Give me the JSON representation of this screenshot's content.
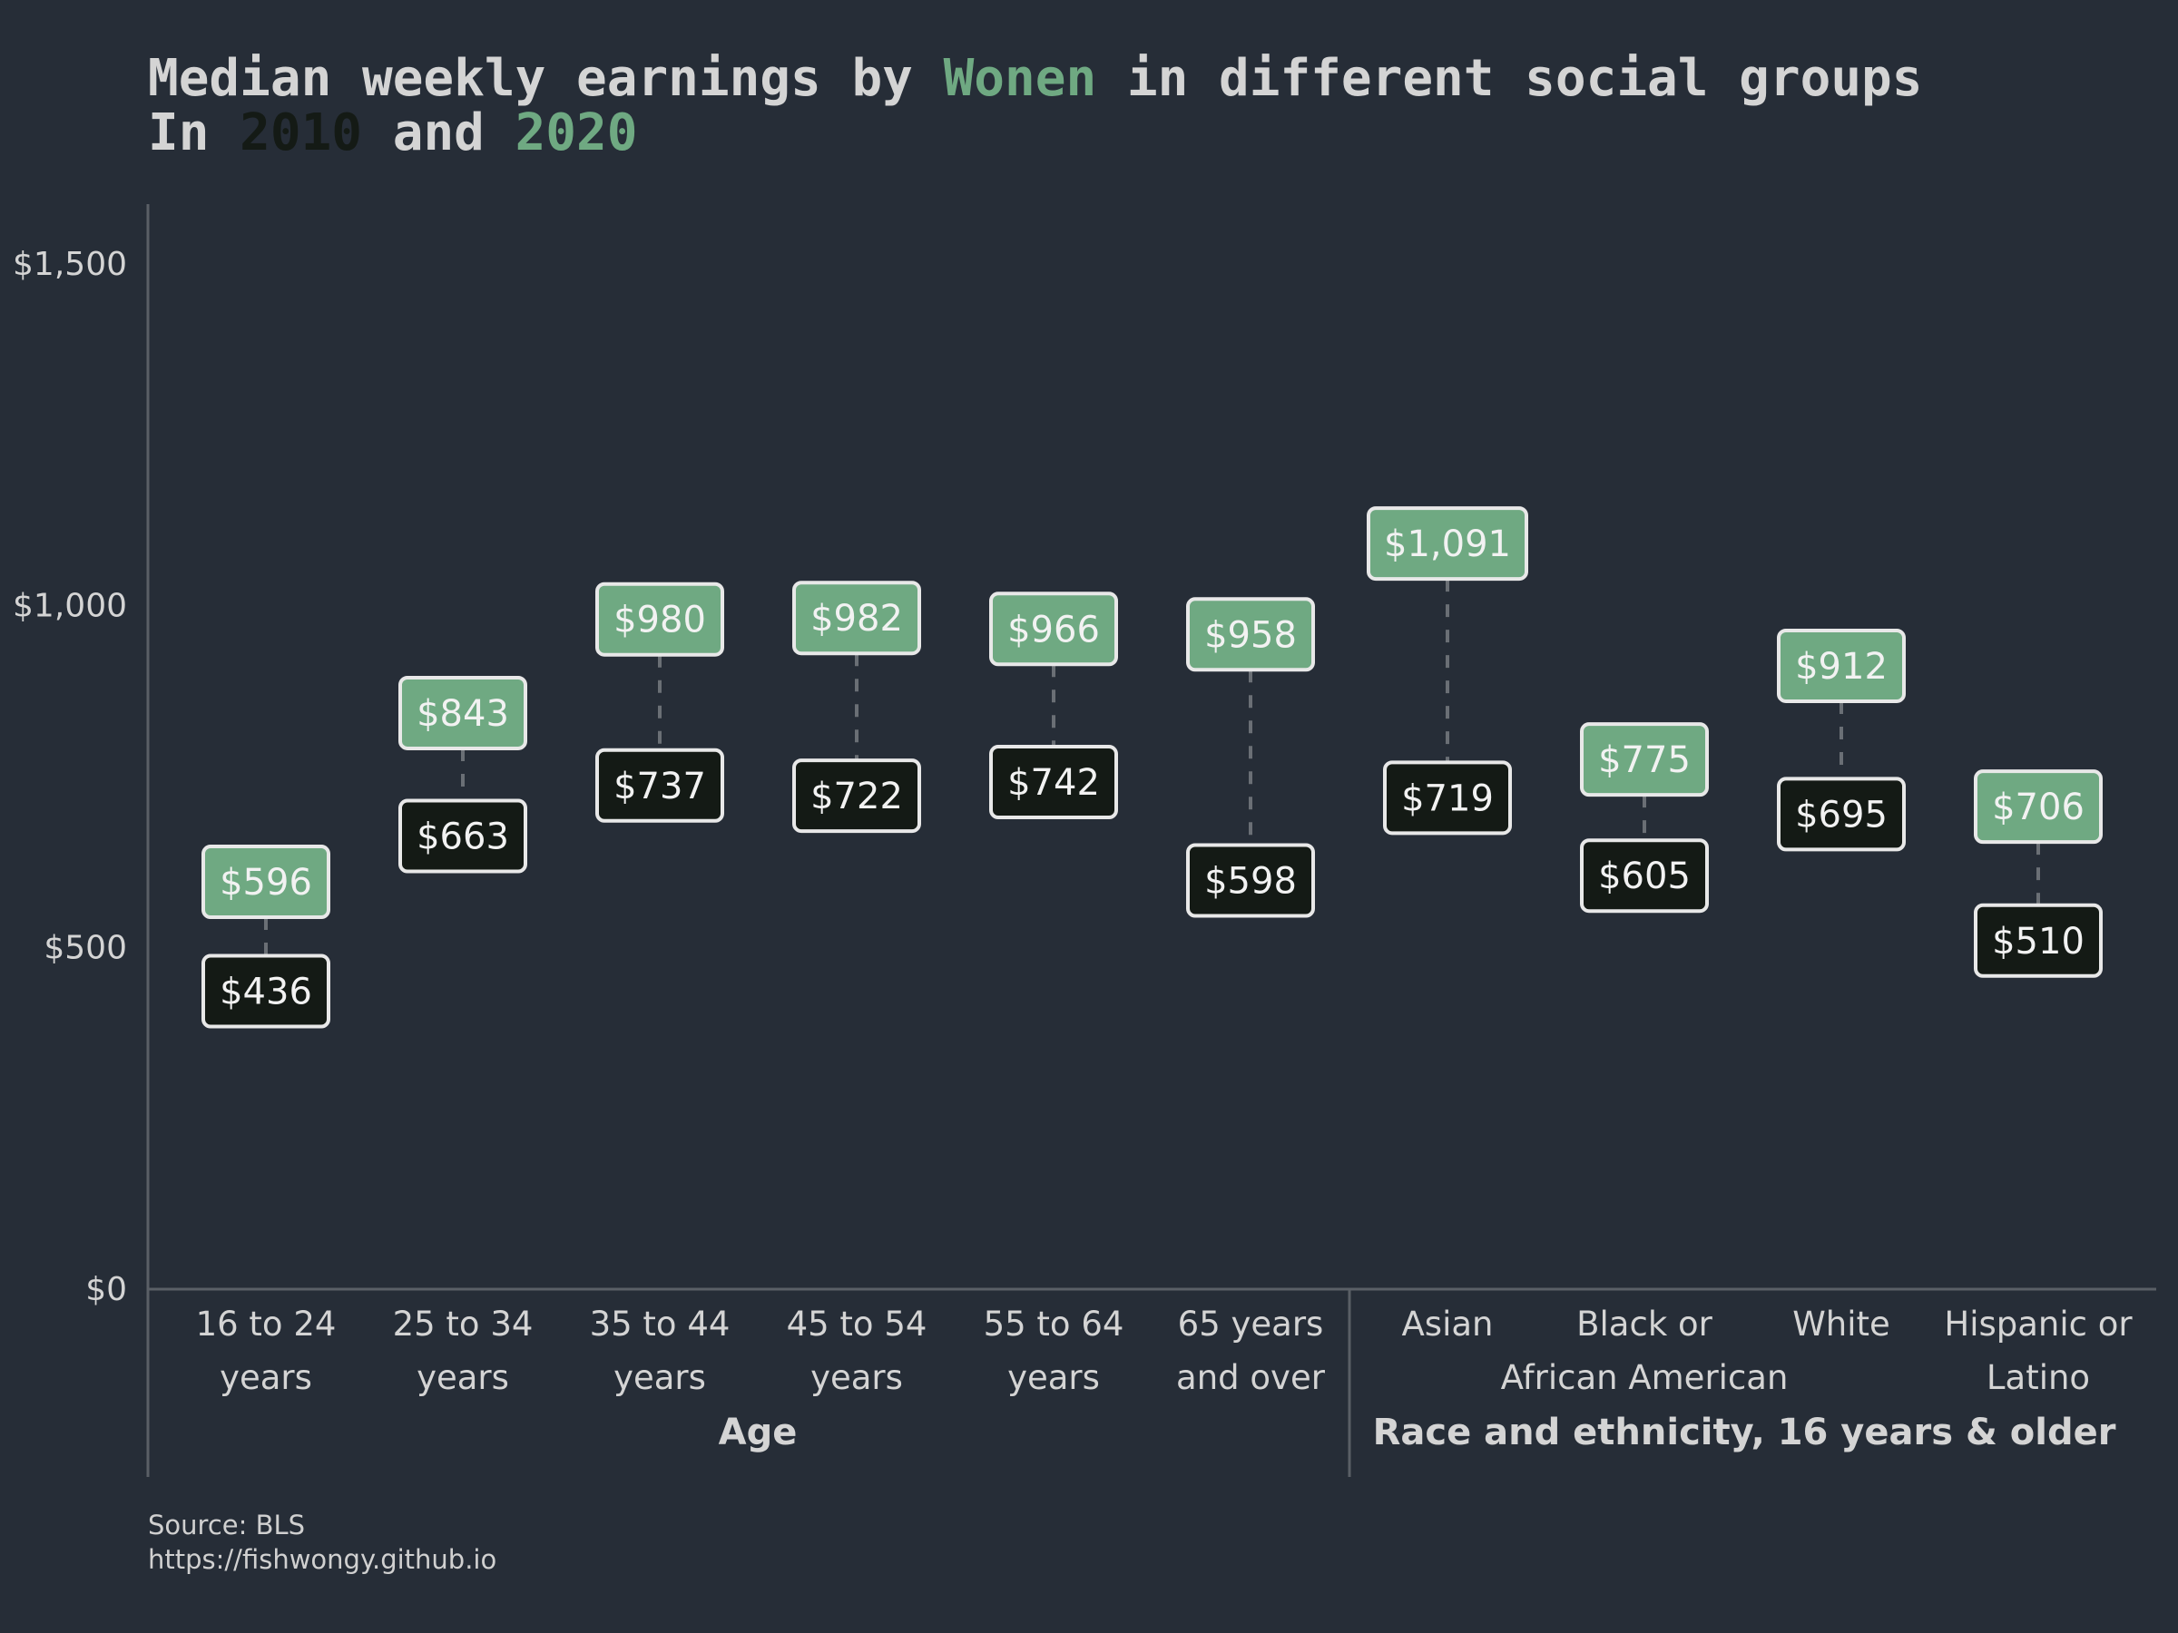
{
  "title": {
    "line1_prefix": "Median weekly earnings by ",
    "line1_highlight": "Wonen",
    "line1_suffix": " in different social groups",
    "line2_prefix": "In ",
    "line2_year1": "2010",
    "line2_middle": " and ",
    "line2_year2": "2020"
  },
  "source": {
    "line1": "Source: BLS",
    "line2": "https://fishwongy.github.io"
  },
  "colors": {
    "background": "#262d37",
    "text": "#d4d4d4",
    "axis": "#5a5f66",
    "series_2020": "#6fa982",
    "series_2010": "#141a15",
    "label_border": "#e8e8e8",
    "connector": "#6a6f75"
  },
  "chart_data": {
    "type": "dumbbell",
    "ylim": [
      0,
      1500
    ],
    "y_ticks": [
      0,
      500,
      1000,
      1500
    ],
    "y_tick_labels": [
      "$0",
      "$500",
      "$1,000",
      "$1,500"
    ],
    "groups": [
      {
        "name": "Age",
        "categories": [
          "16 to 24 years",
          "25 to 34 years",
          "35 to 44 years",
          "45 to 54 years",
          "55 to 64 years",
          "65 years and over"
        ]
      },
      {
        "name": "Race and ethnicity, 16 years & older",
        "categories": [
          "Asian",
          "Black or African American",
          "White",
          "Hispanic or Latino"
        ]
      }
    ],
    "category_labels": [
      [
        "16 to 24",
        "years"
      ],
      [
        "25 to 34",
        "years"
      ],
      [
        "35 to 44",
        "years"
      ],
      [
        "45 to 54",
        "years"
      ],
      [
        "55 to 64",
        "years"
      ],
      [
        "65 years",
        "and over"
      ],
      [
        "Asian",
        ""
      ],
      [
        "Black or",
        "African American"
      ],
      [
        "White",
        ""
      ],
      [
        "Hispanic or",
        "Latino"
      ]
    ],
    "series": [
      {
        "name": "2010",
        "values": [
          436,
          663,
          737,
          722,
          742,
          598,
          719,
          605,
          695,
          510
        ],
        "labels": [
          "$436",
          "$663",
          "$737",
          "$722",
          "$742",
          "$598",
          "$719",
          "$605",
          "$695",
          "$510"
        ]
      },
      {
        "name": "2020",
        "values": [
          596,
          843,
          980,
          982,
          966,
          958,
          1091,
          775,
          912,
          706
        ],
        "labels": [
          "$596",
          "$843",
          "$980",
          "$982",
          "$966",
          "$958",
          "$1,091",
          "$775",
          "$912",
          "$706"
        ]
      }
    ]
  }
}
